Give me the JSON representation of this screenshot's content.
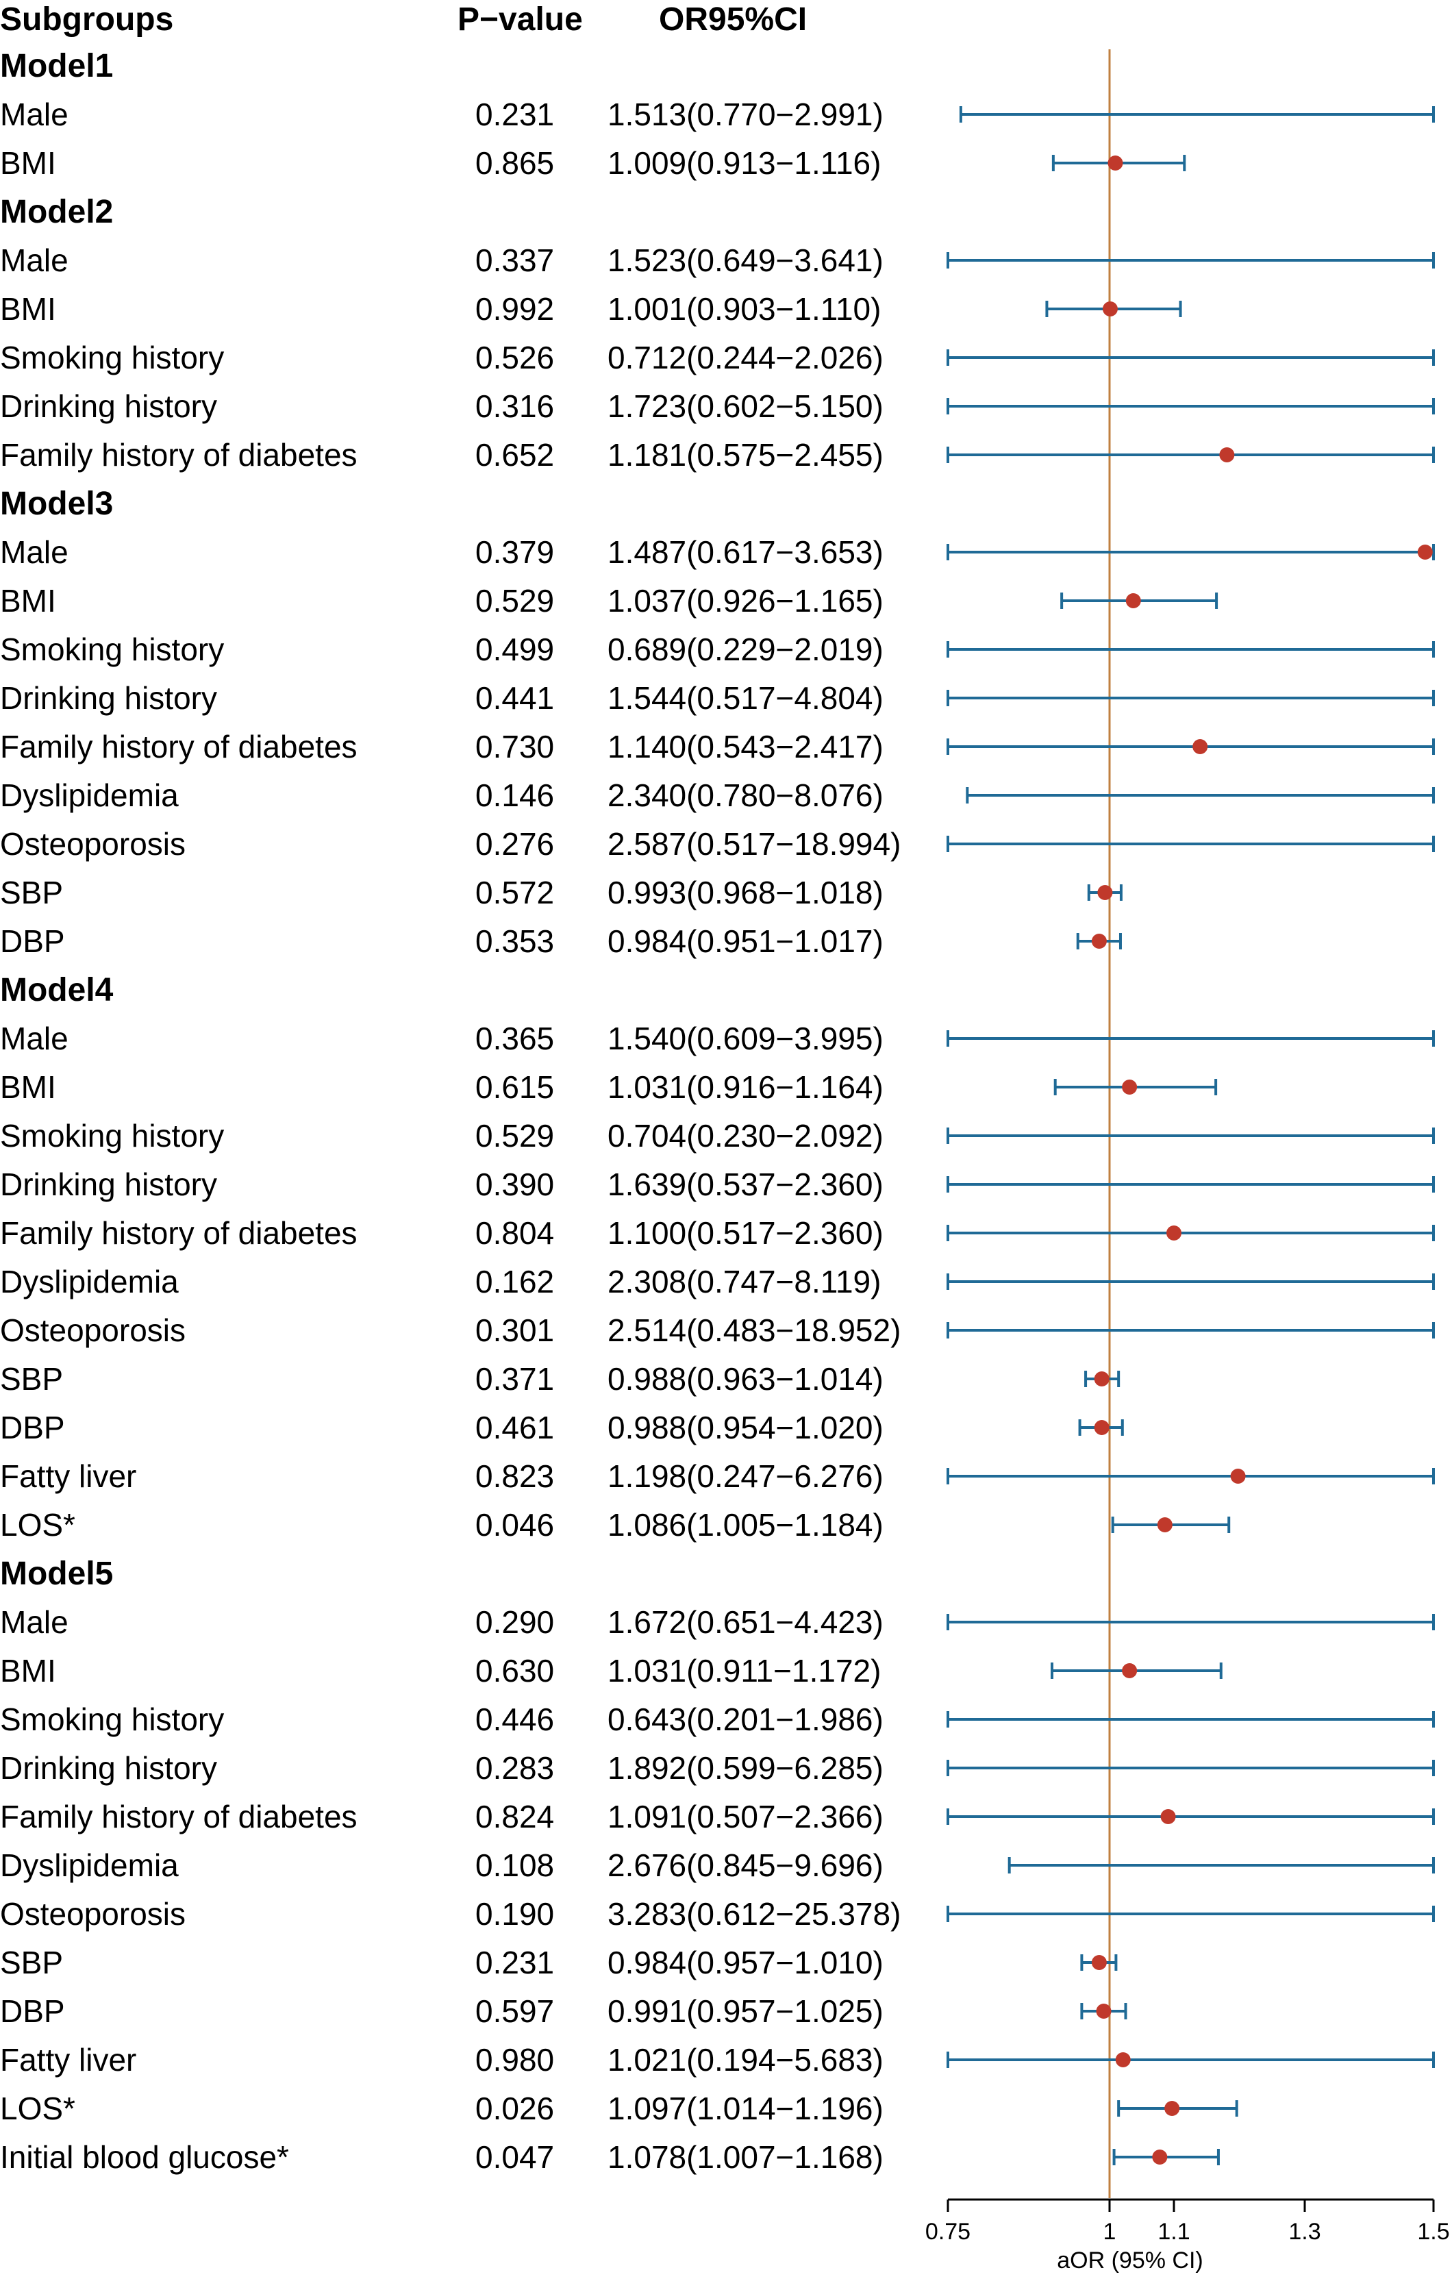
{
  "header": {
    "subgroups": "Subgroups",
    "pvalue": "P−value",
    "or": "OR95%CI"
  },
  "colors": {
    "ci_line": "#1f6a96",
    "point": "#c0392b",
    "ref_line": "#c08040",
    "text": "#000000"
  },
  "chart_data": {
    "type": "forest",
    "xlabel": "aOR (95% CI)",
    "xlim": [
      0.75,
      1.5
    ],
    "ticks": [
      0.75,
      1,
      1.1,
      1.3,
      1.5
    ],
    "tick_labels": [
      "0.75",
      "1",
      "1.1",
      "1.3",
      "1.5"
    ],
    "reference": 1,
    "rows": [
      {
        "kind": "group",
        "label": "Model1"
      },
      {
        "kind": "item",
        "label": "Male",
        "p": "0.231",
        "ci_text": "1.513(0.770−2.991)",
        "or": 1.513,
        "lo": 0.77,
        "hi": 2.991
      },
      {
        "kind": "item",
        "label": "BMI",
        "p": "0.865",
        "ci_text": "1.009(0.913−1.116)",
        "or": 1.009,
        "lo": 0.913,
        "hi": 1.116
      },
      {
        "kind": "group",
        "label": "Model2"
      },
      {
        "kind": "item",
        "label": "Male",
        "p": "0.337",
        "ci_text": "1.523(0.649−3.641)",
        "or": 1.523,
        "lo": 0.649,
        "hi": 3.641
      },
      {
        "kind": "item",
        "label": "BMI",
        "p": "0.992",
        "ci_text": "1.001(0.903−1.110)",
        "or": 1.001,
        "lo": 0.903,
        "hi": 1.11
      },
      {
        "kind": "item",
        "label": "Smoking history",
        "p": "0.526",
        "ci_text": "0.712(0.244−2.026)",
        "or": 0.712,
        "lo": 0.244,
        "hi": 2.026
      },
      {
        "kind": "item",
        "label": "Drinking history",
        "p": "0.316",
        "ci_text": "1.723(0.602−5.150)",
        "or": 1.723,
        "lo": 0.602,
        "hi": 5.15
      },
      {
        "kind": "item",
        "label": "Family history of diabetes",
        "p": "0.652",
        "ci_text": "1.181(0.575−2.455)",
        "or": 1.181,
        "lo": 0.575,
        "hi": 2.455
      },
      {
        "kind": "group",
        "label": "Model3"
      },
      {
        "kind": "item",
        "label": "Male",
        "p": "0.379",
        "ci_text": "1.487(0.617−3.653)",
        "or": 1.487,
        "lo": 0.617,
        "hi": 3.653
      },
      {
        "kind": "item",
        "label": "BMI",
        "p": "0.529",
        "ci_text": "1.037(0.926−1.165)",
        "or": 1.037,
        "lo": 0.926,
        "hi": 1.165
      },
      {
        "kind": "item",
        "label": "Smoking history",
        "p": "0.499",
        "ci_text": "0.689(0.229−2.019)",
        "or": 0.689,
        "lo": 0.229,
        "hi": 2.019
      },
      {
        "kind": "item",
        "label": "Drinking history",
        "p": "0.441",
        "ci_text": "1.544(0.517−4.804)",
        "or": 1.544,
        "lo": 0.517,
        "hi": 4.804
      },
      {
        "kind": "item",
        "label": "Family history of diabetes",
        "p": "0.730",
        "ci_text": "1.140(0.543−2.417)",
        "or": 1.14,
        "lo": 0.543,
        "hi": 2.417
      },
      {
        "kind": "item",
        "label": "Dyslipidemia",
        "p": "0.146",
        "ci_text": "2.340(0.780−8.076)",
        "or": 2.34,
        "lo": 0.78,
        "hi": 8.076
      },
      {
        "kind": "item",
        "label": "Osteoporosis",
        "p": "0.276",
        "ci_text": "2.587(0.517−18.994)",
        "or": 2.587,
        "lo": 0.517,
        "hi": 18.994
      },
      {
        "kind": "item",
        "label": "SBP",
        "p": "0.572",
        "ci_text": "0.993(0.968−1.018)",
        "or": 0.993,
        "lo": 0.968,
        "hi": 1.018
      },
      {
        "kind": "item",
        "label": "DBP",
        "p": "0.353",
        "ci_text": "0.984(0.951−1.017)",
        "or": 0.984,
        "lo": 0.951,
        "hi": 1.017
      },
      {
        "kind": "group",
        "label": "Model4"
      },
      {
        "kind": "item",
        "label": "Male",
        "p": "0.365",
        "ci_text": "1.540(0.609−3.995)",
        "or": 1.54,
        "lo": 0.609,
        "hi": 3.995
      },
      {
        "kind": "item",
        "label": "BMI",
        "p": "0.615",
        "ci_text": "1.031(0.916−1.164)",
        "or": 1.031,
        "lo": 0.916,
        "hi": 1.164
      },
      {
        "kind": "item",
        "label": "Smoking history",
        "p": "0.529",
        "ci_text": "0.704(0.230−2.092)",
        "or": 0.704,
        "lo": 0.23,
        "hi": 2.092
      },
      {
        "kind": "item",
        "label": "Drinking history",
        "p": "0.390",
        "ci_text": "1.639(0.537−2.360)",
        "or": 1.639,
        "lo": 0.537,
        "hi": 2.36
      },
      {
        "kind": "item",
        "label": "Family history of diabetes",
        "p": "0.804",
        "ci_text": "1.100(0.517−2.360)",
        "or": 1.1,
        "lo": 0.517,
        "hi": 2.36
      },
      {
        "kind": "item",
        "label": "Dyslipidemia",
        "p": "0.162",
        "ci_text": "2.308(0.747−8.119)",
        "or": 2.308,
        "lo": 0.747,
        "hi": 8.119
      },
      {
        "kind": "item",
        "label": "Osteoporosis",
        "p": "0.301",
        "ci_text": "2.514(0.483−18.952)",
        "or": 2.514,
        "lo": 0.483,
        "hi": 18.952
      },
      {
        "kind": "item",
        "label": "SBP",
        "p": "0.371",
        "ci_text": "0.988(0.963−1.014)",
        "or": 0.988,
        "lo": 0.963,
        "hi": 1.014
      },
      {
        "kind": "item",
        "label": "DBP",
        "p": "0.461",
        "ci_text": "0.988(0.954−1.020)",
        "or": 0.988,
        "lo": 0.954,
        "hi": 1.02
      },
      {
        "kind": "item",
        "label": "Fatty liver",
        "p": "0.823",
        "ci_text": "1.198(0.247−6.276)",
        "or": 1.198,
        "lo": 0.247,
        "hi": 6.276
      },
      {
        "kind": "item",
        "label": "LOS*",
        "p": "0.046",
        "ci_text": "1.086(1.005−1.184)",
        "or": 1.086,
        "lo": 1.005,
        "hi": 1.184
      },
      {
        "kind": "group",
        "label": "Model5"
      },
      {
        "kind": "item",
        "label": "Male",
        "p": "0.290",
        "ci_text": "1.672(0.651−4.423)",
        "or": 1.672,
        "lo": 0.651,
        "hi": 4.423
      },
      {
        "kind": "item",
        "label": "BMI",
        "p": "0.630",
        "ci_text": "1.031(0.911−1.172)",
        "or": 1.031,
        "lo": 0.911,
        "hi": 1.172
      },
      {
        "kind": "item",
        "label": "Smoking history",
        "p": "0.446",
        "ci_text": "0.643(0.201−1.986)",
        "or": 0.643,
        "lo": 0.201,
        "hi": 1.986
      },
      {
        "kind": "item",
        "label": "Drinking history",
        "p": "0.283",
        "ci_text": "1.892(0.599−6.285)",
        "or": 1.892,
        "lo": 0.599,
        "hi": 6.285
      },
      {
        "kind": "item",
        "label": "Family history of diabetes",
        "p": "0.824",
        "ci_text": "1.091(0.507−2.366)",
        "or": 1.091,
        "lo": 0.507,
        "hi": 2.366
      },
      {
        "kind": "item",
        "label": "Dyslipidemia",
        "p": "0.108",
        "ci_text": "2.676(0.845−9.696)",
        "or": 2.676,
        "lo": 0.845,
        "hi": 9.696
      },
      {
        "kind": "item",
        "label": "Osteoporosis",
        "p": "0.190",
        "ci_text": "3.283(0.612−25.378)",
        "or": 3.283,
        "lo": 0.612,
        "hi": 25.378
      },
      {
        "kind": "item",
        "label": "SBP",
        "p": "0.231",
        "ci_text": "0.984(0.957−1.010)",
        "or": 0.984,
        "lo": 0.957,
        "hi": 1.01
      },
      {
        "kind": "item",
        "label": "DBP",
        "p": "0.597",
        "ci_text": "0.991(0.957−1.025)",
        "or": 0.991,
        "lo": 0.957,
        "hi": 1.025
      },
      {
        "kind": "item",
        "label": "Fatty liver",
        "p": "0.980",
        "ci_text": "1.021(0.194−5.683)",
        "or": 1.021,
        "lo": 0.194,
        "hi": 5.683
      },
      {
        "kind": "item",
        "label": "LOS*",
        "p": "0.026",
        "ci_text": "1.097(1.014−1.196)",
        "or": 1.097,
        "lo": 1.014,
        "hi": 1.196
      },
      {
        "kind": "item",
        "label": "Initial blood glucose*",
        "p": "0.047",
        "ci_text": "1.078(1.007−1.168)",
        "or": 1.078,
        "lo": 1.007,
        "hi": 1.168
      }
    ]
  }
}
